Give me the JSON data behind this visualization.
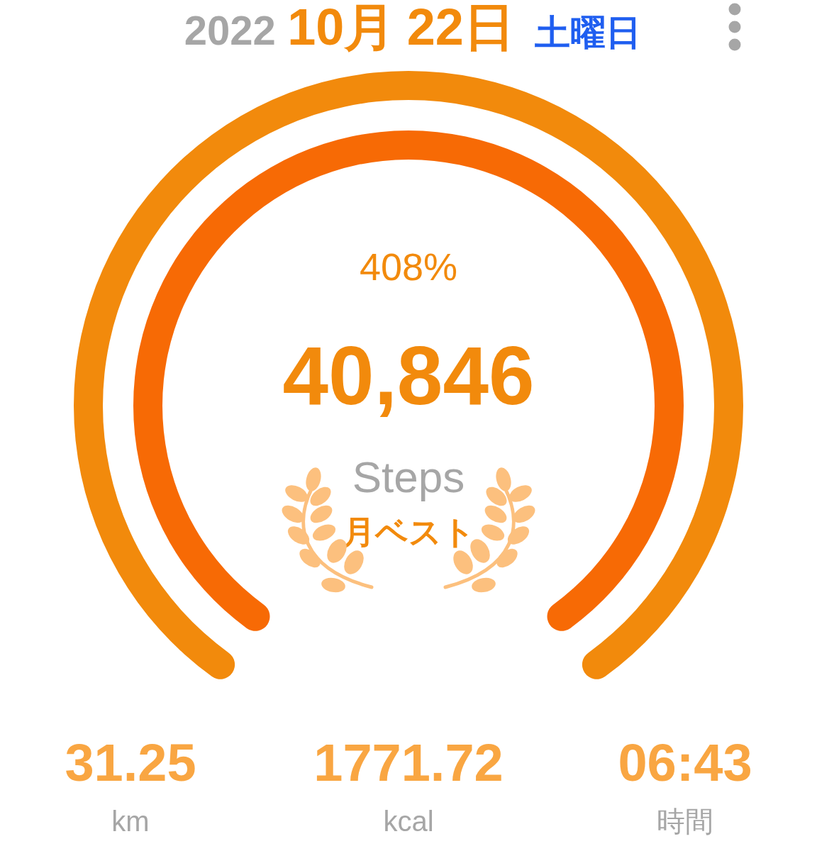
{
  "chart_data": {
    "type": "donut",
    "title": "2022 10月 22日 土曜日",
    "categories": [
      null
    ],
    "series": [
      {
        "color": "#f76a05",
        "values": [
          100
        ]
      },
      {
        "color": "#f28a0c",
        "values": [
          100
        ]
      }
    ],
    "annotations": [
      "408%",
      "40,846",
      "Steps",
      "月ベスト",
      "31.25",
      "km",
      "1771.72",
      "kcal",
      "06:43",
      "時間"
    ]
  }
}
